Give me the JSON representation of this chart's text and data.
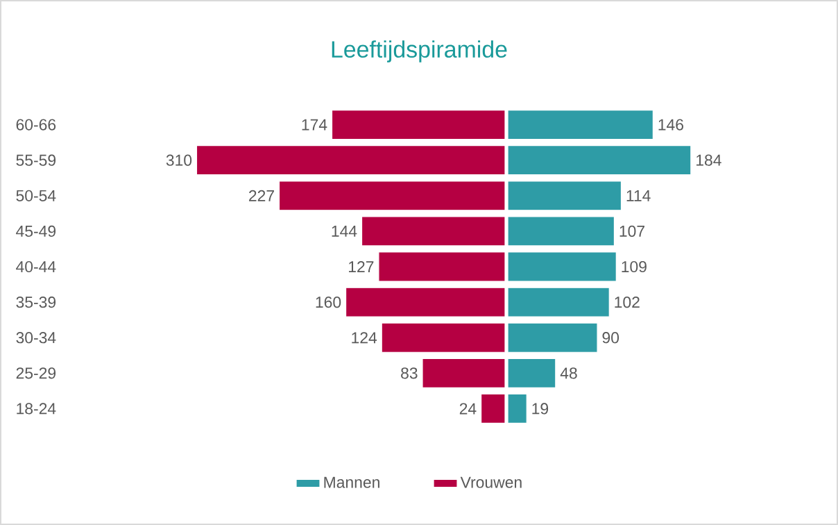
{
  "chart_data": [
    {
      "type": "bar",
      "orientation": "horizontal",
      "title": "Leeftijdspiramide",
      "categories": [
        "60-66",
        "55-59",
        "50-54",
        "45-49",
        "40-44",
        "35-39",
        "30-34",
        "25-29",
        "18-24"
      ],
      "series": [
        {
          "name": "Vrouwen",
          "color": "#b50042",
          "values": [
            174,
            310,
            227,
            144,
            127,
            160,
            124,
            83,
            24
          ]
        }
      ],
      "xlim": [
        310,
        0
      ],
      "data_labels": true,
      "tick_labels": "y",
      "legend": "bottom"
    },
    {
      "type": "bar",
      "orientation": "horizontal",
      "categories": [
        null,
        null,
        null,
        null,
        null,
        null,
        null,
        null,
        null
      ],
      "series": [
        {
          "name": "Mannen",
          "color": "#2e9ca6",
          "values": [
            146,
            184,
            114,
            107,
            109,
            102,
            90,
            48,
            19
          ]
        }
      ],
      "xlim": [
        0,
        184
      ],
      "data_labels": true,
      "tick_labels": false,
      "legend": "bottom"
    }
  ]
}
